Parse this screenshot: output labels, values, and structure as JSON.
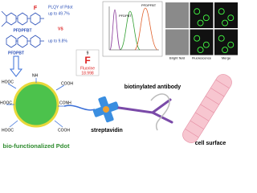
{
  "structures": {
    "plqy_title": "PLQY of Pdot",
    "plqy_top": "up to 49.7%",
    "top_label": "PFDPFBT",
    "versus": "VS",
    "plqy_bottom": "up to 9.8%",
    "bottom_label": "PFDPBT",
    "fluoro_mark": "F"
  },
  "element": {
    "number": "9",
    "symbol": "F",
    "name": "Fluorine",
    "mass": "18.998"
  },
  "histogram": {
    "legend": [
      "PFDPFBT",
      "PFDPBT"
    ]
  },
  "microscopy": {
    "labels": [
      "Bright field",
      "Fluorescence",
      "Merge"
    ]
  },
  "pdot": {
    "label": "bio-functionalized Pdot",
    "groups": [
      "HOOC",
      "HOOC",
      "HOOC",
      "COOH",
      "COOH",
      "CONH",
      "NH"
    ]
  },
  "labels": {
    "antibody": "biotinylated antibody",
    "streptavidin": "streptavidin",
    "cell": "cell surface"
  }
}
